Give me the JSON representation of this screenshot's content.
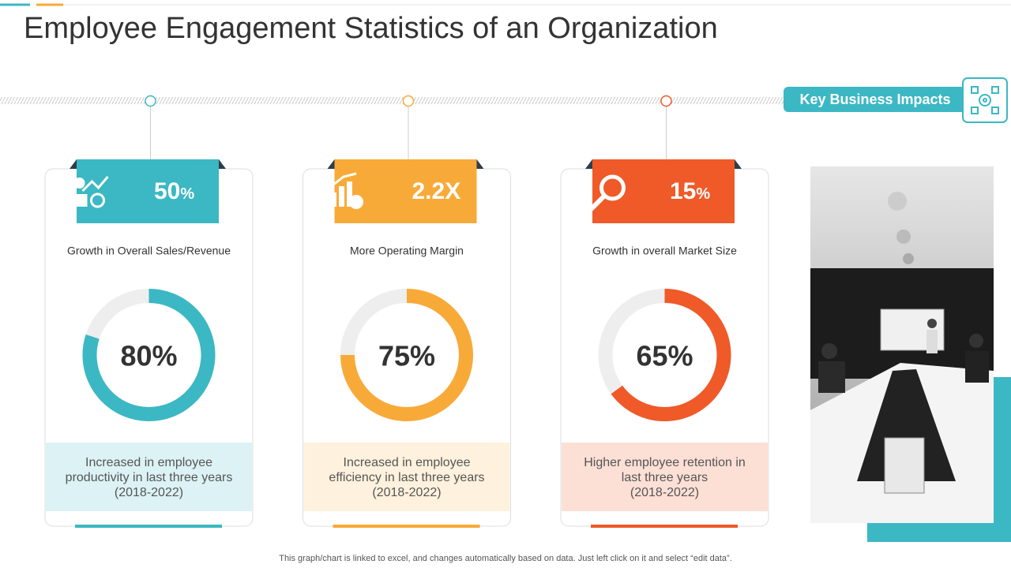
{
  "title": "Employee Engagement Statistics of an Organization",
  "badge": "Key Business Impacts",
  "cards": [
    {
      "headline_value": "50",
      "headline_unit": "%",
      "subtitle": "Growth in Overall Sales/Revenue",
      "donut": {
        "value": 80,
        "label": "80%"
      },
      "color": "#3bb8c3",
      "tint": "#dcf2f4",
      "description": [
        "Increased in employee",
        "productivity in last three years",
        "(2018-2022)"
      ]
    },
    {
      "headline_value": "2.2X",
      "subtitle": "More Operating Margin",
      "donut": {
        "value": 75,
        "label": "75%"
      },
      "color": "#f8aa38",
      "tint": "#fef1dd",
      "description": [
        "Increased in employee",
        "efficiency in last three years",
        "(2018-2022)"
      ]
    },
    {
      "headline_value": "15",
      "headline_unit": "%",
      "subtitle": "Growth in overall Market Size",
      "donut": {
        "value": 65,
        "label": "65%"
      },
      "color": "#ef5a28",
      "tint": "#fcdfd5",
      "description": [
        "Higher employee retention in",
        "last three years",
        "(2018-2022)"
      ]
    }
  ],
  "footer": "This graph/chart is linked to excel, and changes automatically based on data. Just left click on it and select “edit data”."
}
